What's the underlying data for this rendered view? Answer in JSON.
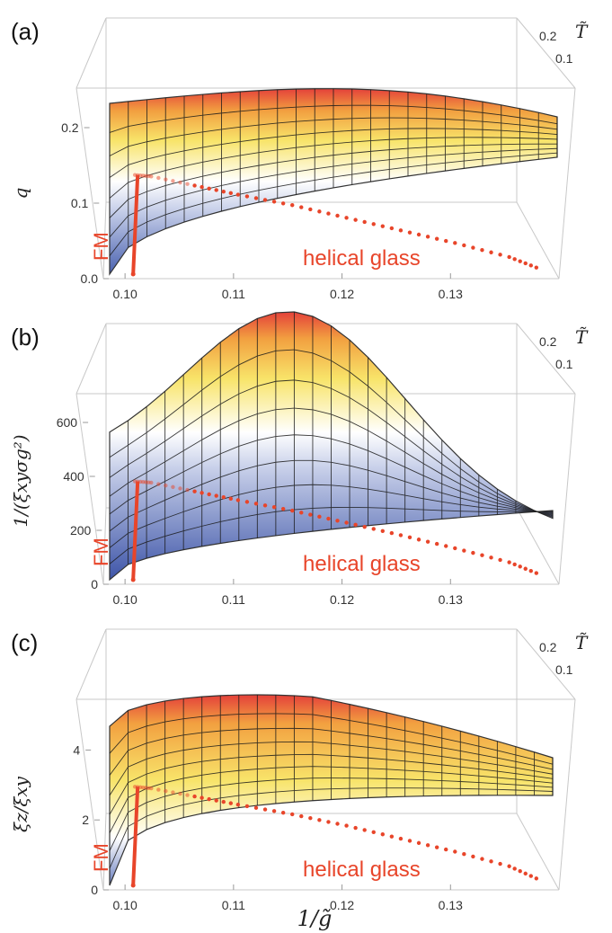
{
  "figure": {
    "x_axis_title": "1/g̃",
    "depth_axis_title": "T̃",
    "fm_label": "FM",
    "helical_label": "helical glass"
  },
  "chart_data": [
    {
      "type": "surface",
      "panel": "(a)",
      "zlabel": "q",
      "ylabel": "T̃",
      "xlabel": "1/g̃",
      "x_ticks": [
        "0.10",
        "0.11",
        "0.12",
        "0.13"
      ],
      "z_ticks": [
        "0.0",
        "0.1",
        "0.2"
      ],
      "y_ticks": [
        "0.1",
        "0.2"
      ],
      "x_range": [
        0.098,
        0.14
      ],
      "z_range": [
        0,
        0.25
      ],
      "y_range": [
        0,
        0.25
      ],
      "colormap": [
        "#4a62b0",
        "#ffffff",
        "#f6e35a",
        "#e4413a"
      ],
      "transition_line": {
        "x": [
          0.1005,
          0.102,
          0.106,
          0.11,
          0.115,
          0.12,
          0.125,
          0.13,
          0.135,
          0.138
        ],
        "z": [
          0.135,
          0.133,
          0.12,
          0.107,
          0.092,
          0.074,
          0.056,
          0.038,
          0.018,
          0.0
        ]
      }
    },
    {
      "type": "surface",
      "panel": "(b)",
      "zlabel": "1/(ξxyσg²)",
      "ylabel": "T̃",
      "xlabel": "1/g̃",
      "x_ticks": [
        "0.10",
        "0.11",
        "0.12",
        "0.13"
      ],
      "z_ticks": [
        "0",
        "200",
        "400",
        "600"
      ],
      "y_ticks": [
        "0.1",
        "0.2"
      ],
      "x_range": [
        0.098,
        0.14
      ],
      "z_range": [
        0,
        700
      ],
      "y_range": [
        0,
        0.25
      ],
      "colormap": [
        "#4a62b0",
        "#ffffff",
        "#f6e35a",
        "#e4413a"
      ],
      "transition_line": {
        "x": [
          0.1005,
          0.102,
          0.106,
          0.11,
          0.115,
          0.12,
          0.125,
          0.13,
          0.135,
          0.138
        ],
        "z": [
          375,
          370,
          335,
          300,
          258,
          210,
          160,
          108,
          52,
          0
        ]
      }
    },
    {
      "type": "surface",
      "panel": "(c)",
      "zlabel": "ξz/ξxy",
      "ylabel": "T̃",
      "xlabel": "1/g̃",
      "x_ticks": [
        "0.10",
        "0.11",
        "0.12",
        "0.13"
      ],
      "z_ticks": [
        "0",
        "2",
        "4"
      ],
      "y_ticks": [
        "0.1",
        "0.2"
      ],
      "x_range": [
        0.098,
        0.14
      ],
      "z_range": [
        0,
        5.4
      ],
      "y_range": [
        0,
        0.25
      ],
      "colormap": [
        "#4a62b0",
        "#ffffff",
        "#f6e35a",
        "#e4413a"
      ],
      "transition_line": {
        "x": [
          0.1005,
          0.102,
          0.106,
          0.11,
          0.115,
          0.12,
          0.125,
          0.13,
          0.135,
          0.138
        ],
        "z": [
          2.9,
          2.85,
          2.6,
          2.35,
          2.05,
          1.7,
          1.3,
          0.9,
          0.45,
          0.0
        ]
      }
    }
  ]
}
